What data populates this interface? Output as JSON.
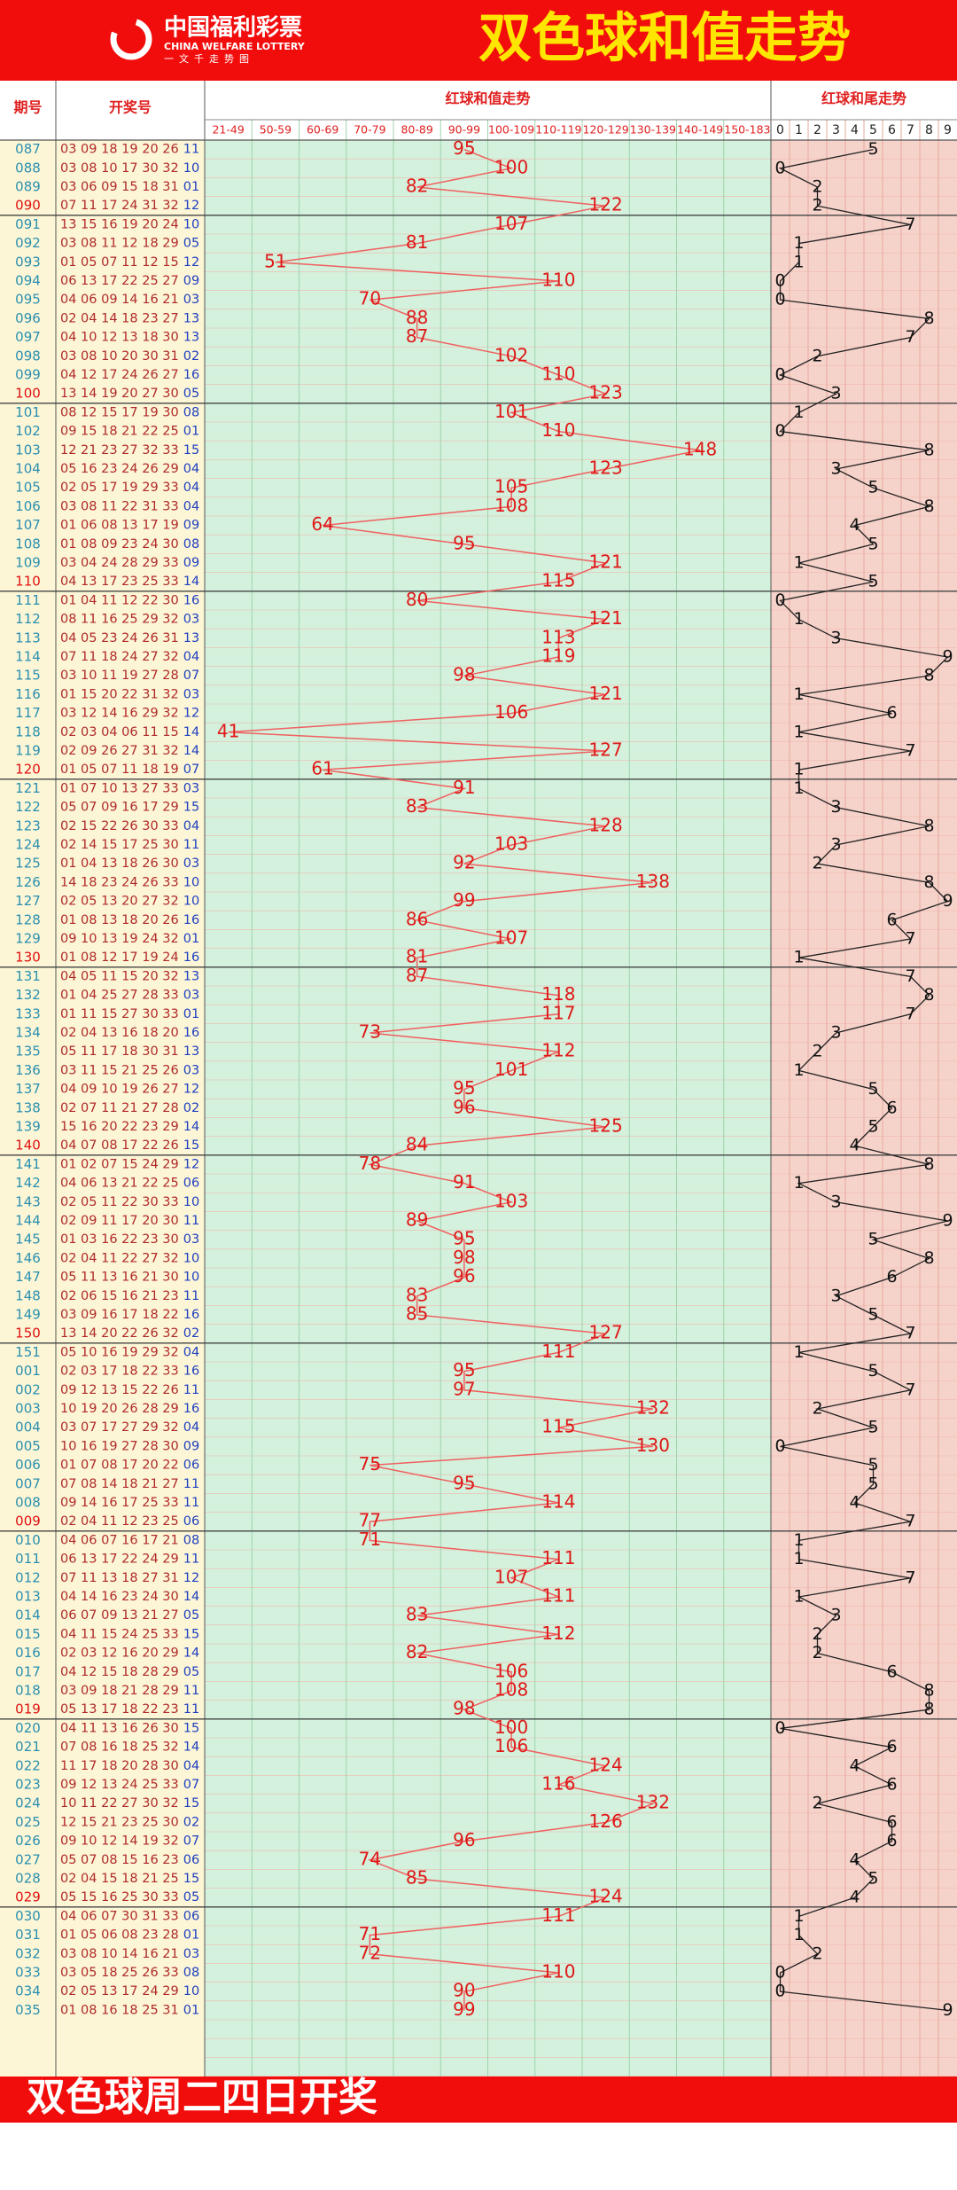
{
  "header": {
    "logo_cn": "中国福利彩票",
    "logo_en": "CHINA WELFARE LOTTERY",
    "logo_sub": "一文千走势图",
    "title": "双色球和值走势"
  },
  "table": {
    "columns": [
      "期号",
      "开奖号"
    ],
    "sum_title": "红球和值走势",
    "tail_title": "红球和尾走势",
    "sum_bins": [
      "21-49",
      "50-59",
      "60-69",
      "70-79",
      "80-89",
      "90-99",
      "100-109",
      "110-119",
      "120-129",
      "130-139",
      "140-149",
      "150-183"
    ],
    "tail_digits": [
      0,
      1,
      2,
      3,
      4,
      5,
      6,
      7,
      8,
      9
    ],
    "rows": [
      [
        "087",
        "03 09 18 19 20 26",
        "11",
        95,
        5
      ],
      [
        "088",
        "03 08 10 17 30 32",
        "10",
        100,
        0
      ],
      [
        "089",
        "03 06 09 15 18 31",
        "01",
        82,
        2
      ],
      [
        "090",
        "07 11 17 24 31 32",
        "12",
        122,
        2
      ],
      [
        "091",
        "13 15 16 19 20 24",
        "10",
        107,
        7
      ],
      [
        "092",
        "03 08 11 12 18 29",
        "05",
        81,
        1
      ],
      [
        "093",
        "01 05 07 11 12 15",
        "12",
        51,
        1
      ],
      [
        "094",
        "06 13 17 22 25 27",
        "09",
        110,
        0
      ],
      [
        "095",
        "04 06 09 14 16 21",
        "03",
        70,
        0
      ],
      [
        "096",
        "02 04 14 18 23 27",
        "13",
        88,
        8
      ],
      [
        "097",
        "04 10 12 13 18 30",
        "13",
        87,
        7
      ],
      [
        "098",
        "03 08 10 20 30 31",
        "02",
        102,
        2
      ],
      [
        "099",
        "04 12 17 24 26 27",
        "16",
        110,
        0
      ],
      [
        "100",
        "13 14 19 20 27 30",
        "05",
        123,
        3
      ],
      [
        "101",
        "08 12 15 17 19 30",
        "08",
        101,
        1
      ],
      [
        "102",
        "09 15 18 21 22 25",
        "01",
        110,
        0
      ],
      [
        "103",
        "12 21 23 27 32 33",
        "15",
        148,
        8
      ],
      [
        "104",
        "05 16 23 24 26 29",
        "04",
        123,
        3
      ],
      [
        "105",
        "02 05 17 19 29 33",
        "04",
        105,
        5
      ],
      [
        "106",
        "03 08 11 22 31 33",
        "04",
        108,
        8
      ],
      [
        "107",
        "01 06 08 13 17 19",
        "09",
        64,
        4
      ],
      [
        "108",
        "01 08 09 23 24 30",
        "08",
        95,
        5
      ],
      [
        "109",
        "03 04 24 28 29 33",
        "09",
        121,
        1
      ],
      [
        "110",
        "04 13 17 23 25 33",
        "14",
        115,
        5
      ],
      [
        "111",
        "01 04 11 12 22 30",
        "16",
        80,
        0
      ],
      [
        "112",
        "08 11 16 25 29 32",
        "03",
        121,
        1
      ],
      [
        "113",
        "04 05 23 24 26 31",
        "13",
        113,
        3
      ],
      [
        "114",
        "07 11 18 24 27 32",
        "04",
        119,
        9
      ],
      [
        "115",
        "03 10 11 19 27 28",
        "07",
        98,
        8
      ],
      [
        "116",
        "01 15 20 22 31 32",
        "03",
        121,
        1
      ],
      [
        "117",
        "03 12 14 16 29 32",
        "12",
        106,
        6
      ],
      [
        "118",
        "02 03 04 06 11 15",
        "14",
        41,
        1
      ],
      [
        "119",
        "02 09 26 27 31 32",
        "14",
        127,
        7
      ],
      [
        "120",
        "01 05 07 11 18 19",
        "07",
        61,
        1
      ],
      [
        "121",
        "01 07 10 13 27 33",
        "03",
        91,
        1
      ],
      [
        "122",
        "05 07 09 16 17 29",
        "15",
        83,
        3
      ],
      [
        "123",
        "02 15 22 26 30 33",
        "04",
        128,
        8
      ],
      [
        "124",
        "02 14 15 17 25 30",
        "11",
        103,
        3
      ],
      [
        "125",
        "01 04 13 18 26 30",
        "03",
        92,
        2
      ],
      [
        "126",
        "14 18 23 24 26 33",
        "10",
        138,
        8
      ],
      [
        "127",
        "02 05 13 20 27 32",
        "10",
        99,
        9
      ],
      [
        "128",
        "01 08 13 18 20 26",
        "16",
        86,
        6
      ],
      [
        "129",
        "09 10 13 19 24 32",
        "01",
        107,
        7
      ],
      [
        "130",
        "01 08 12 17 19 24",
        "16",
        81,
        1
      ],
      [
        "131",
        "04 05 11 15 20 32",
        "13",
        87,
        7
      ],
      [
        "132",
        "01 04 25 27 28 33",
        "03",
        118,
        8
      ],
      [
        "133",
        "01 11 15 27 30 33",
        "01",
        117,
        7
      ],
      [
        "134",
        "02 04 13 16 18 20",
        "16",
        73,
        3
      ],
      [
        "135",
        "05 11 17 18 30 31",
        "13",
        112,
        2
      ],
      [
        "136",
        "03 11 15 21 25 26",
        "03",
        101,
        1
      ],
      [
        "137",
        "04 09 10 19 26 27",
        "12",
        95,
        5
      ],
      [
        "138",
        "02 07 11 21 27 28",
        "02",
        96,
        6
      ],
      [
        "139",
        "15 16 20 22 23 29",
        "14",
        125,
        5
      ],
      [
        "140",
        "04 07 08 17 22 26",
        "15",
        84,
        4
      ],
      [
        "141",
        "01 02 07 15 24 29",
        "12",
        78,
        8
      ],
      [
        "142",
        "04 06 13 21 22 25",
        "06",
        91,
        1
      ],
      [
        "143",
        "02 05 11 22 30 33",
        "10",
        103,
        3
      ],
      [
        "144",
        "02 09 11 17 20 30",
        "11",
        89,
        9
      ],
      [
        "145",
        "01 03 16 22 23 30",
        "03",
        95,
        5
      ],
      [
        "146",
        "02 04 11 22 27 32",
        "10",
        98,
        8
      ],
      [
        "147",
        "05 11 13 16 21 30",
        "10",
        96,
        6
      ],
      [
        "148",
        "02 06 15 16 21 23",
        "11",
        83,
        3
      ],
      [
        "149",
        "03 09 16 17 18 22",
        "16",
        85,
        5
      ],
      [
        "150",
        "13 14 20 22 26 32",
        "02",
        127,
        7
      ],
      [
        "151",
        "05 10 16 19 29 32",
        "04",
        111,
        1
      ],
      [
        "001",
        "02 03 17 18 22 33",
        "16",
        95,
        5
      ],
      [
        "002",
        "09 12 13 15 22 26",
        "11",
        97,
        7
      ],
      [
        "003",
        "10 19 20 26 28 29",
        "16",
        132,
        2
      ],
      [
        "004",
        "03 07 17 27 29 32",
        "04",
        115,
        5
      ],
      [
        "005",
        "10 16 19 27 28 30",
        "09",
        130,
        0
      ],
      [
        "006",
        "01 07 08 17 20 22",
        "06",
        75,
        5
      ],
      [
        "007",
        "07 08 14 18 21 27",
        "11",
        95,
        5
      ],
      [
        "008",
        "09 14 16 17 25 33",
        "11",
        114,
        4
      ],
      [
        "009",
        "02 04 11 12 23 25",
        "06",
        77,
        7
      ],
      [
        "010",
        "04 06 07 16 17 21",
        "08",
        71,
        1
      ],
      [
        "011",
        "06 13 17 22 24 29",
        "11",
        111,
        1
      ],
      [
        "012",
        "07 11 13 18 27 31",
        "12",
        107,
        7
      ],
      [
        "013",
        "04 14 16 23 24 30",
        "14",
        111,
        1
      ],
      [
        "014",
        "06 07 09 13 21 27",
        "05",
        83,
        3
      ],
      [
        "015",
        "04 11 15 24 25 33",
        "15",
        112,
        2
      ],
      [
        "016",
        "02 03 12 16 20 29",
        "14",
        82,
        2
      ],
      [
        "017",
        "04 12 15 18 28 29",
        "05",
        106,
        6
      ],
      [
        "018",
        "03 09 18 21 28 29",
        "11",
        108,
        8
      ],
      [
        "019",
        "05 13 17 18 22 23",
        "11",
        98,
        8
      ],
      [
        "020",
        "04 11 13 16 26 30",
        "15",
        100,
        0
      ],
      [
        "021",
        "07 08 16 18 25 32",
        "14",
        106,
        6
      ],
      [
        "022",
        "11 17 18 20 28 30",
        "04",
        124,
        4
      ],
      [
        "023",
        "09 12 13 24 25 33",
        "07",
        116,
        6
      ],
      [
        "024",
        "10 11 22 27 30 32",
        "15",
        132,
        2
      ],
      [
        "025",
        "12 15 21 23 25 30",
        "02",
        126,
        6
      ],
      [
        "026",
        "09 10 12 14 19 32",
        "07",
        96,
        6
      ],
      [
        "027",
        "05 07 08 15 16 23",
        "06",
        74,
        4
      ],
      [
        "028",
        "02 04 15 18 21 25",
        "15",
        85,
        5
      ],
      [
        "029",
        "05 15 16 25 30 33",
        "05",
        124,
        4
      ],
      [
        "030",
        "04 06 07 30 31 33",
        "06",
        111,
        1
      ],
      [
        "031",
        "01 05 06 08 23 28",
        "01",
        71,
        1
      ],
      [
        "032",
        "03 08 10 14 16 21",
        "03",
        72,
        2
      ],
      [
        "033",
        "03 05 18 25 26 33",
        "08",
        110,
        0
      ],
      [
        "034",
        "02 05 13 17 24 29",
        "10",
        90,
        0
      ],
      [
        "035",
        "01 08 16 18 25 31",
        "01",
        99,
        9
      ]
    ]
  },
  "footer": "双色球周二四日开奖"
}
